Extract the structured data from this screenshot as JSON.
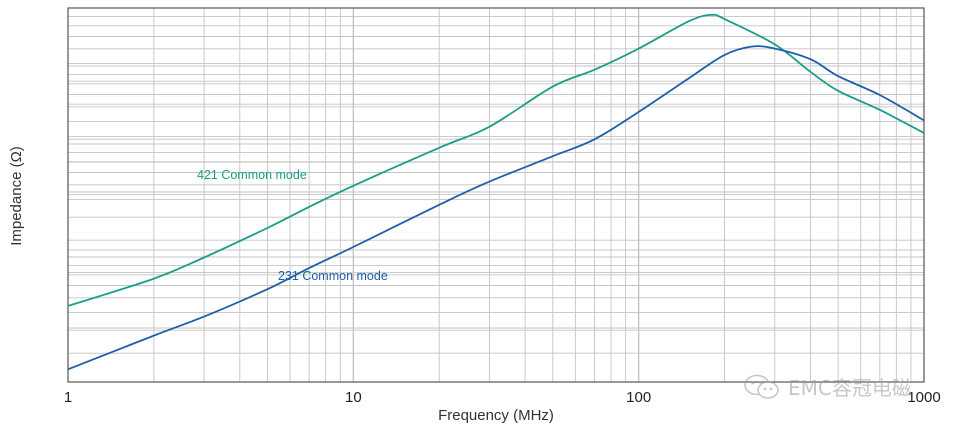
{
  "chart_data": {
    "type": "line",
    "xlabel": "Frequency (MHz)",
    "ylabel": "Impedance (Ω)",
    "x_scale": "log",
    "y_scale": "log",
    "xlim": [
      1,
      1000
    ],
    "grid": true,
    "x_ticks": [
      {
        "value": 1,
        "label": "1"
      },
      {
        "value": 10,
        "label": "10"
      },
      {
        "value": 100,
        "label": "100"
      },
      {
        "value": 1000,
        "label": "1000"
      }
    ],
    "series": [
      {
        "name": "421 Common mode",
        "color": "#1a9e86",
        "x": [
          1,
          2,
          3,
          5,
          7,
          10,
          20,
          30,
          50,
          70,
          100,
          150,
          180,
          200,
          300,
          400,
          500,
          700,
          1000
        ],
        "y": [
          0.3,
          0.43,
          0.53,
          0.67,
          0.77,
          0.87,
          1.05,
          1.15,
          1.34,
          1.42,
          1.52,
          1.65,
          1.68,
          1.66,
          1.54,
          1.41,
          1.32,
          1.23,
          1.12
        ]
      },
      {
        "name": "231 Common mode",
        "color": "#1d5fa8",
        "x": [
          1,
          2,
          3,
          5,
          7,
          10,
          20,
          30,
          50,
          70,
          100,
          150,
          200,
          250,
          300,
          400,
          500,
          700,
          1000
        ],
        "y": [
          0.0,
          0.16,
          0.25,
          0.38,
          0.48,
          0.58,
          0.78,
          0.89,
          1.01,
          1.09,
          1.22,
          1.38,
          1.49,
          1.53,
          1.52,
          1.47,
          1.39,
          1.3,
          1.18
        ]
      }
    ],
    "annotations": [
      {
        "text": "421 Common mode",
        "series": 0
      },
      {
        "text": "231 Common mode",
        "series": 1
      }
    ]
  },
  "watermark": {
    "text": "EMC容冠电磁",
    "icon": "wechat-icon"
  }
}
